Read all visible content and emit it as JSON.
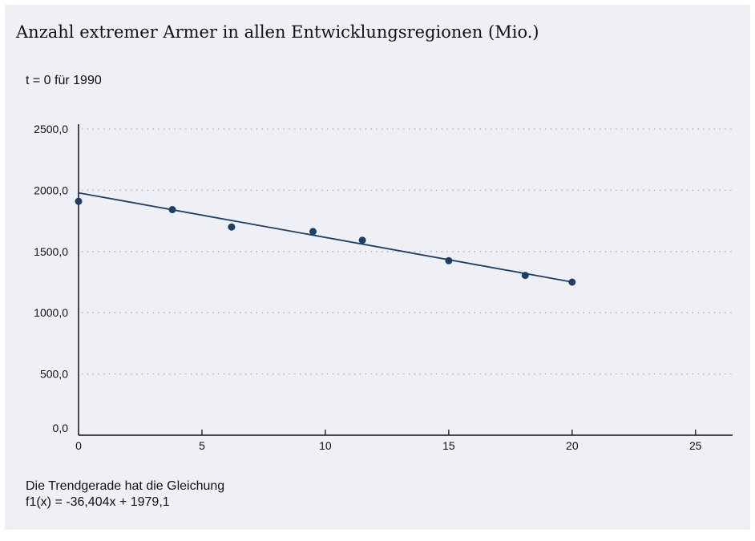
{
  "header": {
    "title": "Anzahl extremer Armer in allen Entwicklungsregionen (Mio.)",
    "subtitle": "t = 0 für 1990"
  },
  "footnote": {
    "line1": "Die Trendgerade hat die Gleichung",
    "line2": "f1(x) = -36,404x + 1979,1"
  },
  "colors": {
    "background": "#eef0f6",
    "marker": "#1c3f66",
    "trendline": "#1c3f66",
    "grid": "#9aa0a8",
    "axis": "#111111"
  },
  "chart_data": {
    "type": "scatter",
    "x": [
      0,
      3.8,
      6.2,
      9.5,
      11.5,
      15,
      18.1,
      20
    ],
    "y": [
      1910,
      1842,
      1700,
      1663,
      1592,
      1425,
      1305,
      1250
    ],
    "xlim": [
      0,
      26.5
    ],
    "ylim": [
      0,
      2500
    ],
    "x_ticks": [
      0,
      5,
      10,
      15,
      20,
      25
    ],
    "x_tick_labels": [
      "0",
      "5",
      "10",
      "15",
      "20",
      "25"
    ],
    "y_ticks": [
      0,
      500,
      1000,
      1500,
      2000,
      2500
    ],
    "y_tick_labels": [
      "0,0",
      "500,0",
      "1000,0",
      "1500,0",
      "2000,0",
      "2500,0"
    ],
    "grid": "horizontal-dotted",
    "trendline": {
      "slope": -36.404,
      "intercept": 1979.1,
      "x_range": [
        0,
        20
      ]
    }
  }
}
